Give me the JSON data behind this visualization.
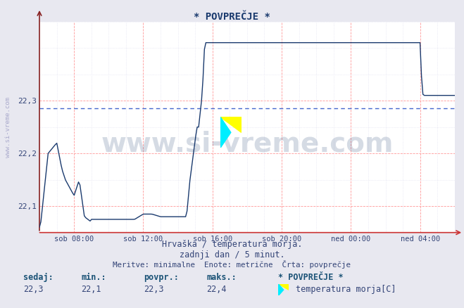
{
  "title": "* POVPREČJE *",
  "bg_color": "#e8e8f0",
  "plot_bg_color": "#ffffff",
  "line_color": "#1a3a6e",
  "avg_line_color": "#4466cc",
  "grid_major_color": "#ff9999",
  "grid_minor_color": "#ffcccc",
  "grid_minor_h_color": "#ddddee",
  "xlabel_text1": "Hrvaška / temperatura morja.",
  "xlabel_text2": "zadnji dan / 5 minut.",
  "xlabel_text3": "Meritve: minimalne  Enote: metrične  Črta: povprečje",
  "ylabel_text": "www.si-vreme.com",
  "footer_labels": [
    "sedaj:",
    "min.:",
    "povpr.:",
    "maks.:"
  ],
  "footer_values": [
    "22,3",
    "22,1",
    "22,3",
    "22,4"
  ],
  "footer_legend_title": "* POVPREČJE *",
  "footer_legend_label": "temperatura morja[C]",
  "footer_color": "#1a5276",
  "ylim_min": 22.05,
  "ylim_max": 22.45,
  "yticks": [
    22.1,
    22.2,
    22.3
  ],
  "ytick_labels": [
    "22,1",
    "22,2",
    "22,3"
  ],
  "xtick_labels": [
    "sob 08:00",
    "sob 12:00",
    "sob 16:00",
    "sob 20:00",
    "ned 00:00",
    "ned 04:00"
  ],
  "xtick_positions": [
    2,
    6,
    10,
    14,
    18,
    22
  ],
  "xlim_min": 0,
  "xlim_max": 24,
  "avg_value": 22.285,
  "watermark_text": "www.si-vreme.com"
}
